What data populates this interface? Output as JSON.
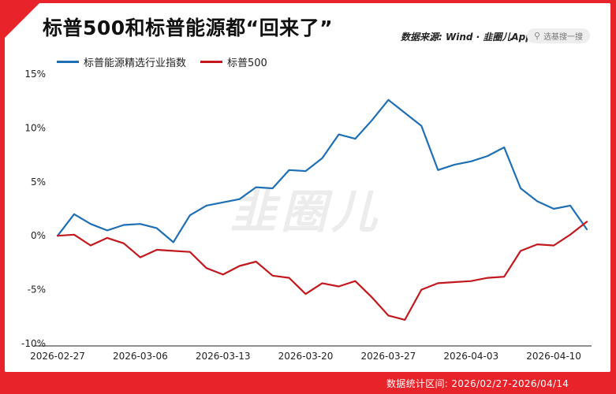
{
  "header": {
    "title": "标普500和标普能源都“回来了”",
    "source": "数据来源: Wind · 韭圈儿App",
    "search_placeholder": "选基搜一搜"
  },
  "watermark": "韭圈儿",
  "footer": {
    "range": "数据统计区间: 2026/02/27-2026/04/14"
  },
  "colors": {
    "brand": "#e8242a",
    "energy": "#1f6fb5",
    "sp500": "#c4181f"
  },
  "chart_data": {
    "type": "line",
    "x": [
      "2026-02-27",
      "2026-03-02",
      "2026-03-03",
      "2026-03-04",
      "2026-03-05",
      "2026-03-06",
      "2026-03-09",
      "2026-03-10",
      "2026-03-11",
      "2026-03-12",
      "2026-03-13",
      "2026-03-16",
      "2026-03-17",
      "2026-03-18",
      "2026-03-19",
      "2026-03-20",
      "2026-03-23",
      "2026-03-24",
      "2026-03-25",
      "2026-03-26",
      "2026-03-27",
      "2026-03-30",
      "2026-03-31",
      "2026-04-01",
      "2026-04-02",
      "2026-04-03",
      "2026-04-06",
      "2026-04-07",
      "2026-04-08",
      "2026-04-09",
      "2026-04-10",
      "2026-04-13",
      "2026-04-14"
    ],
    "x_tick_labels": [
      "2026-02-27",
      "2026-03-06",
      "2026-03-13",
      "2026-03-20",
      "2026-03-27",
      "2026-04-03",
      "2026-04-10"
    ],
    "series": [
      {
        "name": "标普能源精选行业指数",
        "color": "#1f6fb5",
        "values": [
          0,
          2.0,
          1.1,
          0.5,
          1.0,
          1.1,
          0.7,
          -0.6,
          1.9,
          2.8,
          3.1,
          3.4,
          4.5,
          4.4,
          6.1,
          6.0,
          7.2,
          9.4,
          9.0,
          10.7,
          12.6,
          11.4,
          10.2,
          6.1,
          6.6,
          6.9,
          7.4,
          8.2,
          4.4,
          3.2,
          2.5,
          2.8,
          0.6
        ]
      },
      {
        "name": "标普500",
        "color": "#c4181f",
        "values": [
          0,
          0.1,
          -0.9,
          -0.2,
          -0.7,
          -2.0,
          -1.3,
          -1.4,
          -1.5,
          -3.0,
          -3.6,
          -2.8,
          -2.4,
          -3.7,
          -3.9,
          -5.4,
          -4.4,
          -4.7,
          -4.2,
          -5.7,
          -7.4,
          -7.8,
          -5.0,
          -4.4,
          -4.3,
          -4.2,
          -3.9,
          -3.8,
          -1.4,
          -0.8,
          -0.9,
          0.1,
          1.3
        ]
      }
    ],
    "y_ticks": [
      15,
      10,
      5,
      0,
      -5,
      -10
    ],
    "y_tick_labels": [
      "15%",
      "10%",
      "5%",
      "0%",
      "-5%",
      "-10%"
    ],
    "ylim": [
      -10,
      15
    ],
    "grid": false,
    "legend": "top-left"
  }
}
